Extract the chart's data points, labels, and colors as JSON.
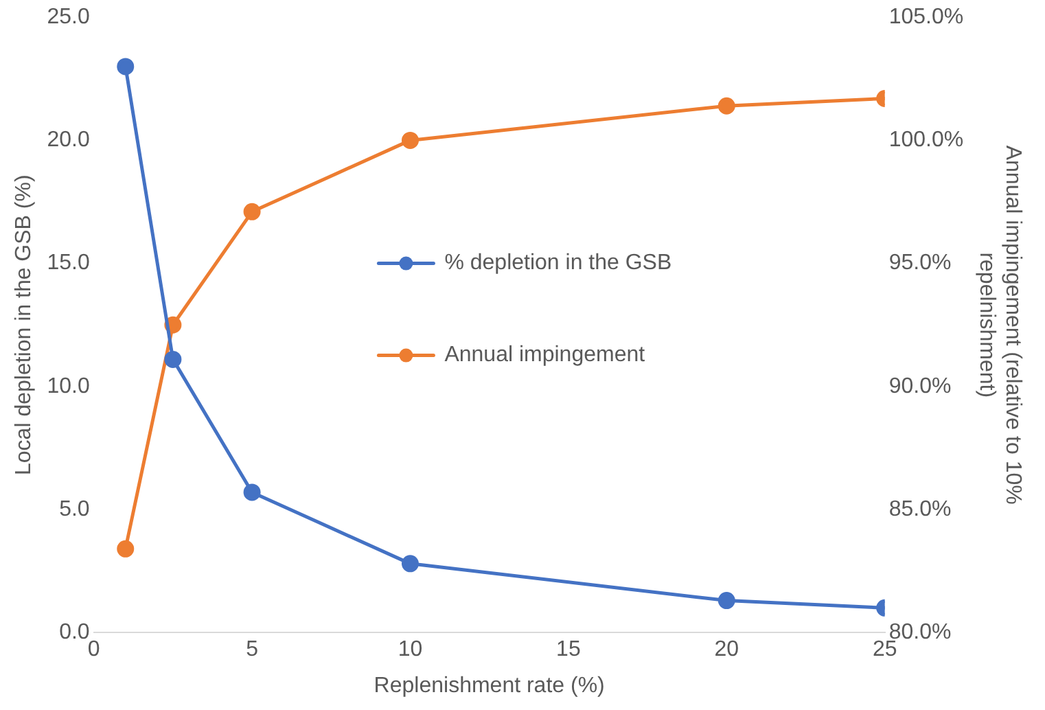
{
  "chart_data": {
    "type": "line",
    "xlabel": "Replenishment rate (%)",
    "ylabel": "Local depletion in the GSB (%)",
    "y2label": "Annual impingement (relative to 10% repelnishment)",
    "xlim": [
      0,
      25
    ],
    "xticks": [
      0,
      5,
      10,
      15,
      20,
      25
    ],
    "ylim": [
      0,
      25
    ],
    "yticks": [
      {
        "value": 0,
        "label": "0.0"
      },
      {
        "value": 5,
        "label": "5.0"
      },
      {
        "value": 10,
        "label": "10.0"
      },
      {
        "value": 15,
        "label": "15.0"
      },
      {
        "value": 20,
        "label": "20.0"
      },
      {
        "value": 25,
        "label": "25.0"
      }
    ],
    "y2lim": [
      80,
      105
    ],
    "y2ticks": [
      {
        "value": 80,
        "label": "80.0%"
      },
      {
        "value": 85,
        "label": "85.0%"
      },
      {
        "value": 90,
        "label": "90.0%"
      },
      {
        "value": 95,
        "label": "95.0%"
      },
      {
        "value": 100,
        "label": "100.0%"
      },
      {
        "value": 105,
        "label": "105.0%"
      }
    ],
    "x": [
      1,
      2.5,
      5,
      10,
      20,
      25
    ],
    "series": [
      {
        "name": "% depletion in the GSB",
        "color": "#4472c4",
        "values": [
          23.0,
          11.1,
          5.7,
          2.8,
          1.3,
          1.0
        ]
      },
      {
        "name": "Annual impingement",
        "color": "#ed7d31",
        "axis": "y2",
        "values": [
          83.4,
          92.5,
          97.1,
          100.0,
          101.4,
          101.7
        ]
      }
    ],
    "grid": false,
    "legend": "center",
    "marker": "circle",
    "line_style": "solid"
  }
}
